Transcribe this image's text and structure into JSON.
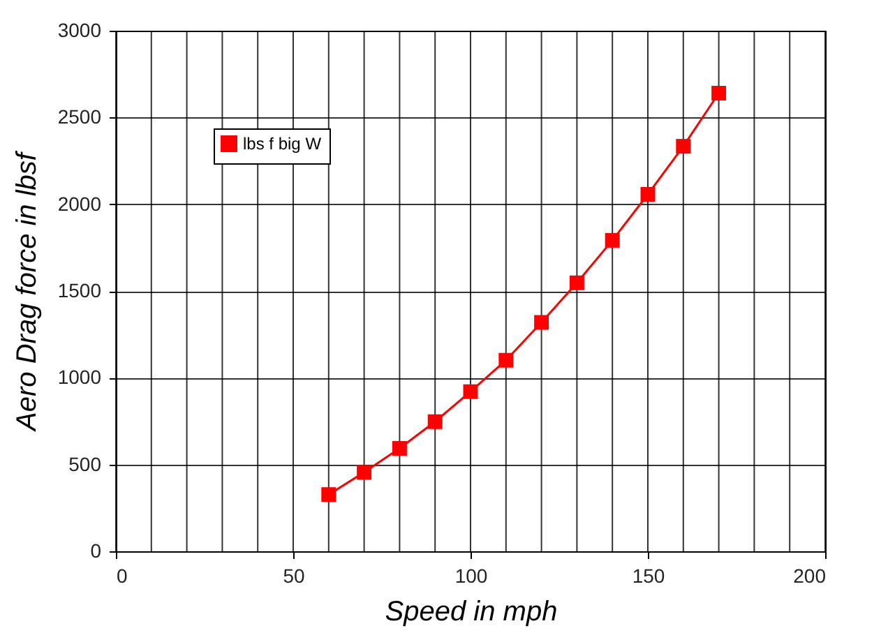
{
  "chart_data": {
    "type": "line",
    "xlabel": "Speed in mph",
    "ylabel": "Aero Drag force in lbsf",
    "x": [
      60,
      70,
      80,
      90,
      100,
      110,
      120,
      130,
      140,
      150,
      160,
      170
    ],
    "series": [
      {
        "name": "lbs f big W",
        "color": "#ff0000",
        "values": [
          327,
          455,
          593,
          747,
          920,
          1101,
          1319,
          1547,
          1792,
          2057,
          2334,
          2640
        ]
      }
    ],
    "xlim": [
      0,
      200
    ],
    "xticks": [
      0,
      50,
      100,
      150,
      200
    ],
    "ylim": [
      0,
      3000
    ],
    "yticks": [
      0,
      500,
      1000,
      1500,
      2000,
      2500,
      3000
    ],
    "grid": true,
    "legend": "top left",
    "marker": "square",
    "line_style": "solid"
  }
}
